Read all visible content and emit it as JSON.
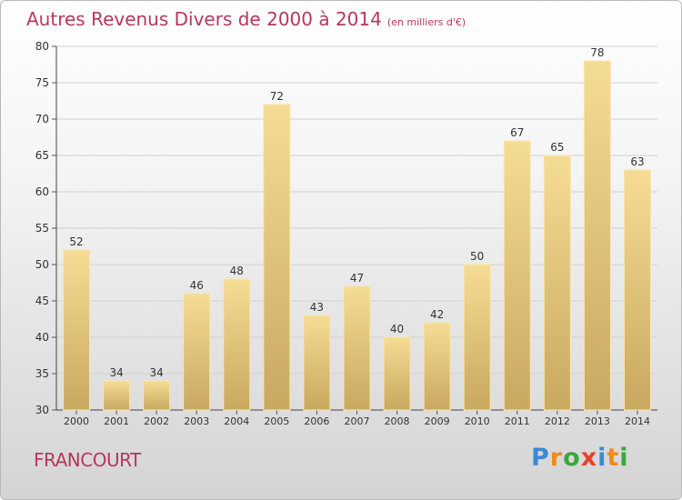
{
  "title": "Autres Revenus Divers de 2000 à 2014",
  "unit_note": "(en milliers d'€)",
  "town": "FRANCOURT",
  "brand": {
    "letters": [
      "P",
      "r",
      "o",
      "x",
      "i",
      "t",
      "i"
    ],
    "colors": [
      "#3a8ad6",
      "#f08a1e",
      "#3aa83a",
      "#e8402a",
      "#3a8ad6",
      "#f08a1e",
      "#3aa83a"
    ]
  },
  "chart_data": {
    "type": "bar",
    "categories": [
      "2000",
      "2001",
      "2002",
      "2003",
      "2004",
      "2005",
      "2006",
      "2007",
      "2008",
      "2009",
      "2010",
      "2011",
      "2012",
      "2013",
      "2014"
    ],
    "values": [
      52,
      34,
      34,
      46,
      48,
      72,
      43,
      47,
      40,
      42,
      50,
      67,
      65,
      78,
      63
    ],
    "ylim": [
      30,
      80
    ],
    "yticks": [
      30,
      35,
      40,
      45,
      50,
      55,
      60,
      65,
      70,
      75,
      80
    ],
    "grid": true,
    "colors": {
      "bar_light": "#f5dc95",
      "bar_dark": "#c9a860",
      "grid": "#d0d0d0"
    }
  }
}
